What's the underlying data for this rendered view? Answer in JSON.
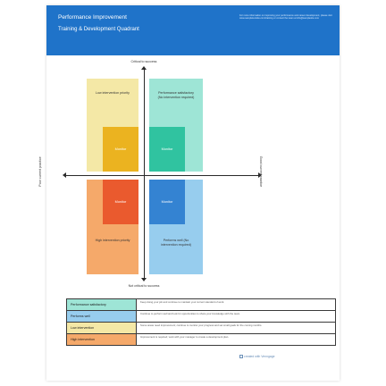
{
  "banner": {
    "title": "Performance Improvement",
    "subtitle": "Training & Development Quadrant",
    "note": "For more information on improving your performance and career development, please visit www.sampletextsite.com/training or contact the team at info@samplesite.com"
  },
  "axes": {
    "top": "Critical to success",
    "bottom": "Not critical to success",
    "left": "Poor current practice",
    "right": "Good current practice"
  },
  "quadrants": {
    "top_left": {
      "label": "Low intervention priority",
      "box": "Monitor",
      "color": "#f4e8a6",
      "box_color": "#ebb320"
    },
    "top_right": {
      "label": "Performance satisfactory (No intervention required)",
      "box": "Monitor",
      "color": "#9ee5d6",
      "box_color": "#30c3a0"
    },
    "bottom_left": {
      "label": "High intervention priority",
      "box": "Monitor",
      "color": "#f5a96a",
      "box_color": "#ea5a2e"
    },
    "bottom_right": {
      "label": "Performs well (No intervention required)",
      "box": "Monitor",
      "color": "#97cdee",
      "box_color": "#3483d2"
    }
  },
  "legend": [
    {
      "name": "Performance satisfactory",
      "color": "#9ee5d6",
      "desc": "Keep doing your job and continue to maintain your current standard of work."
    },
    {
      "name": "Performs well",
      "color": "#97cdee",
      "desc": "Continue to perform well and look for opportunities to share your knowledge with the team."
    },
    {
      "name": "Low intervention",
      "color": "#f4e8a6",
      "desc": "Some areas need improvement; continue to monitor your progress and set small goals for the coming months."
    },
    {
      "name": "High intervention",
      "color": "#f5a96a",
      "desc": "Improvement is required; work with your manager to create a development plan."
    }
  ],
  "footer": {
    "brand": "created with Venngage"
  }
}
